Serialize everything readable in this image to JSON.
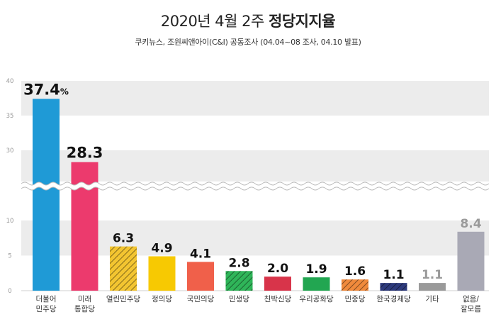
{
  "header": {
    "title_light": "2020년 4월 2주",
    "title_bold": "정당지지율",
    "subtitle": "쿠키뉴스, 조원씨앤아이(C&I) 공동조사 (04.04~08 조사, 04.10 발표)"
  },
  "chart_data": {
    "type": "bar",
    "title": "2020년 4월 2주 정당지지율",
    "unit": "%",
    "y_ticks_lower": [
      0,
      5,
      10
    ],
    "y_ticks_upper": [
      30,
      35,
      40
    ],
    "axis_break": true,
    "categories": [
      {
        "label": "더불어\n민주당",
        "value": 37.4,
        "display": "37.4",
        "suffix": "%",
        "color": "#1f9ad6",
        "pattern": "solid",
        "value_color": "#111111"
      },
      {
        "label": "미래\n통합당",
        "value": 28.3,
        "display": "28.3",
        "suffix": "",
        "color": "#ec3a6d",
        "pattern": "solid",
        "value_color": "#111111"
      },
      {
        "label": "열린민주당",
        "value": 6.3,
        "display": "6.3",
        "suffix": "",
        "color": "#f3c531",
        "pattern": "hatch",
        "value_color": "#111111"
      },
      {
        "label": "정의당",
        "value": 4.9,
        "display": "4.9",
        "suffix": "",
        "color": "#f7c902",
        "pattern": "solid",
        "value_color": "#111111"
      },
      {
        "label": "국민의당",
        "value": 4.1,
        "display": "4.1",
        "suffix": "",
        "color": "#f0604a",
        "pattern": "solid",
        "value_color": "#111111"
      },
      {
        "label": "민생당",
        "value": 2.8,
        "display": "2.8",
        "suffix": "",
        "color": "#2fb559",
        "pattern": "hatch",
        "value_color": "#111111"
      },
      {
        "label": "친박신당",
        "value": 2.0,
        "display": "2.0",
        "suffix": "",
        "color": "#d8344a",
        "pattern": "solid",
        "value_color": "#111111"
      },
      {
        "label": "우리공화당",
        "value": 1.9,
        "display": "1.9",
        "suffix": "",
        "color": "#22a651",
        "pattern": "solid",
        "value_color": "#111111"
      },
      {
        "label": "민중당",
        "value": 1.6,
        "display": "1.6",
        "suffix": "",
        "color": "#f08a3c",
        "pattern": "hatch",
        "value_color": "#111111"
      },
      {
        "label": "한국경제당",
        "value": 1.1,
        "display": "1.1",
        "suffix": "",
        "color": "#2d3a7c",
        "pattern": "hatch",
        "value_color": "#111111"
      },
      {
        "label": "기타",
        "value": 1.1,
        "display": "1.1",
        "suffix": "",
        "color": "#9a9a9a",
        "pattern": "solid",
        "value_color": "#9a9a9a"
      },
      {
        "label": "없음/\n잘모름",
        "value": 8.4,
        "display": "8.4",
        "suffix": "",
        "color": "#a9a9b5",
        "pattern": "solid",
        "value_color": "#9a9a9a"
      }
    ]
  }
}
